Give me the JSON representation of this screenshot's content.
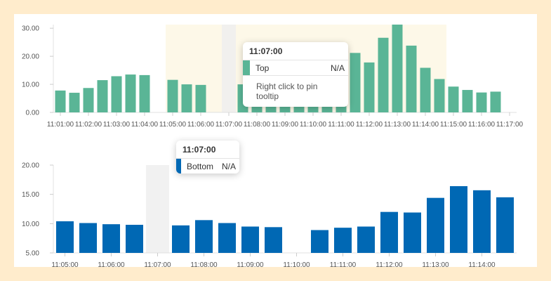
{
  "chart_data": [
    {
      "type": "bar",
      "series": [
        {
          "name": "Top",
          "color": "#5ab596",
          "x": [
            "11:01:00",
            "11:01:30",
            "11:02:00",
            "11:02:30",
            "11:03:00",
            "11:03:30",
            "11:04:00",
            "11:04:30",
            "11:05:00",
            "11:05:30",
            "11:06:00",
            "11:06:30",
            "11:07:00",
            "11:07:30",
            "11:08:00",
            "11:08:30",
            "11:09:00",
            "11:09:30",
            "11:10:00",
            "11:10:30",
            "11:11:00",
            "11:11:30",
            "11:12:00",
            "11:12:30",
            "11:13:00",
            "11:13:30",
            "11:14:00",
            "11:14:30",
            "11:15:00",
            "11:15:30",
            "11:16:00",
            "11:16:30",
            "11:17:00"
          ],
          "values": [
            7.8,
            7.0,
            8.7,
            11.5,
            12.9,
            13.5,
            13.3,
            null,
            11.6,
            10.0,
            9.8,
            null,
            null,
            10.0,
            11.0,
            10.5,
            11.0,
            10.3,
            10.0,
            10.8,
            11.0,
            21.2,
            17.8,
            26.6,
            31.3,
            23.8,
            15.9,
            11.9,
            9.2,
            8.0,
            7.1,
            7.4,
            null
          ],
          "tick_labels": [
            "11:01:00",
            "11:02:00",
            "11:03:00",
            "11:04:00",
            "11:05:00",
            "11:06:00",
            "11:07:00",
            "11:08:00",
            "11:09:00",
            "11:10:00",
            "11:11:00",
            "11:12:00",
            "11:13:00",
            "11:14:00",
            "11:15:00",
            "11:16:00",
            "11:17:00"
          ]
        }
      ],
      "y_ticks": [
        "0.00",
        "10.00",
        "20.00",
        "30.00"
      ],
      "ylim": [
        0,
        31.3
      ],
      "highlight_range": [
        "11:05:00",
        "11:15:00"
      ],
      "hover": "11:07:00",
      "grid": false,
      "tooltip": {
        "time": "11:07:00",
        "rows": [
          {
            "name": "Top",
            "value": "N/A",
            "color": "#5ab596"
          }
        ],
        "hint": "Right click to pin tooltip"
      }
    },
    {
      "type": "bar",
      "series": [
        {
          "name": "Bottom",
          "color": "#0068b4",
          "x": [
            "11:05:00",
            "11:05:30",
            "11:06:00",
            "11:06:30",
            "11:07:00",
            "11:07:30",
            "11:08:00",
            "11:08:30",
            "11:09:00",
            "11:09:30",
            "11:10:00",
            "11:10:30",
            "11:11:00",
            "11:11:30",
            "11:12:00",
            "11:12:30",
            "11:13:00",
            "11:13:30",
            "11:14:00",
            "11:14:30"
          ],
          "values": [
            10.4,
            10.1,
            9.9,
            9.8,
            null,
            9.7,
            10.6,
            10.1,
            9.5,
            9.4,
            null,
            8.9,
            9.3,
            9.5,
            12.0,
            11.9,
            14.4,
            16.4,
            15.7,
            14.5
          ],
          "tick_labels": [
            "11:05:00",
            "11:06:00",
            "11:07:00",
            "11:08:00",
            "11:09:00",
            "11:10:00",
            "11:11:00",
            "11:12:00",
            "11:13:00",
            "11:14:00"
          ]
        }
      ],
      "y_ticks": [
        "5.00",
        "10.00",
        "15.00",
        "20.00"
      ],
      "ylim": [
        5,
        20
      ],
      "hover": "11:07:00",
      "grid": false,
      "tooltip": {
        "time": "11:07:00",
        "rows": [
          {
            "name": "Bottom",
            "value": "N/A",
            "color": "#0068b4"
          }
        ]
      }
    }
  ]
}
